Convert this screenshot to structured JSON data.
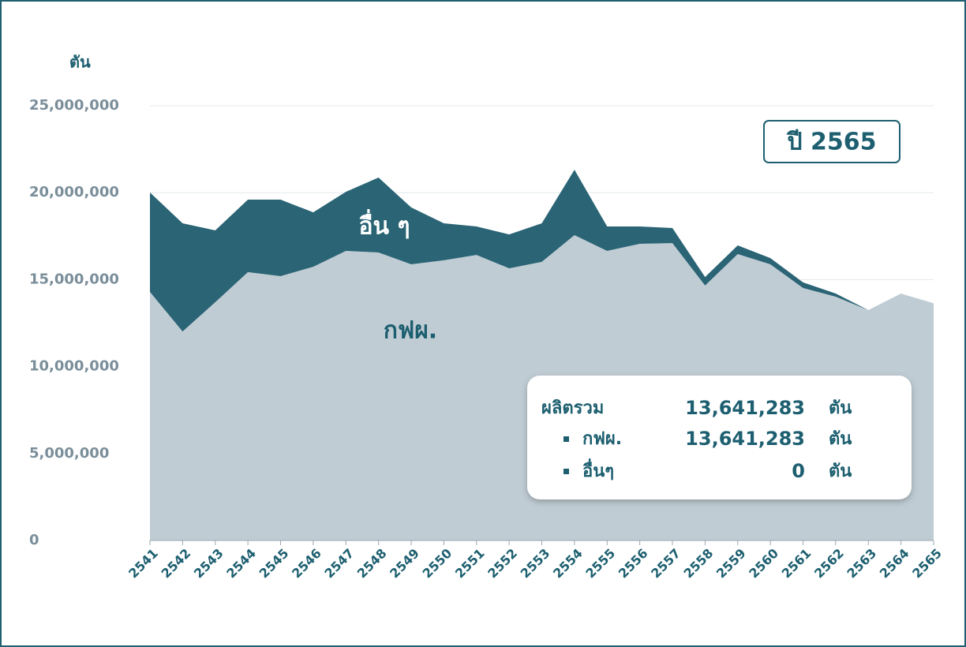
{
  "chart_data": {
    "type": "stacked_area",
    "y_axis_label": "ตัน",
    "badge": "ปี 2565",
    "categories": [
      "2541",
      "2542",
      "2543",
      "2544",
      "2545",
      "2546",
      "2547",
      "2548",
      "2549",
      "2550",
      "2551",
      "2552",
      "2553",
      "2554",
      "2555",
      "2556",
      "2557",
      "2558",
      "2559",
      "2560",
      "2561",
      "2562",
      "2563",
      "2564",
      "2565"
    ],
    "series": [
      {
        "name": "กฟผ.",
        "color": "#c0ccd4",
        "label_color": "#1d5f70",
        "values": [
          14290000,
          12020000,
          13700000,
          15430000,
          15200000,
          15740000,
          16650000,
          16560000,
          15880000,
          16110000,
          16420000,
          15650000,
          16020000,
          17560000,
          16650000,
          17060000,
          17100000,
          14660000,
          16470000,
          15880000,
          14520000,
          14020000,
          13250000,
          14200000,
          13641283
        ]
      },
      {
        "name": "อื่น ๆ",
        "color": "#2a6475",
        "label_color": "#ffffff",
        "values": [
          5720000,
          6220000,
          4130000,
          4170000,
          4400000,
          3130000,
          3400000,
          4310000,
          3270000,
          2130000,
          1640000,
          1950000,
          2220000,
          3760000,
          1410000,
          1000000,
          870000,
          490000,
          500000,
          360000,
          320000,
          180000,
          0,
          0,
          0
        ]
      }
    ],
    "ylim": [
      0,
      25000000
    ],
    "yticks": [
      0,
      {
        "value": 5000000,
        "label": "5,000,000"
      },
      {
        "value": 10000000,
        "label": "10,000,000"
      },
      {
        "value": 15000000,
        "label": "15,000,000"
      },
      {
        "value": 20000000,
        "label": "20,000,000"
      },
      {
        "value": 25000000,
        "label": "25,000,000"
      }
    ],
    "grid": true,
    "info_box": {
      "title": "ผลิตรวม",
      "total": "13,641,283",
      "unit": "ตัน",
      "rows": [
        {
          "name": "กฟผ.",
          "value": "13,641,283"
        },
        {
          "name": "อื่นๆ",
          "value": "0"
        }
      ]
    }
  }
}
